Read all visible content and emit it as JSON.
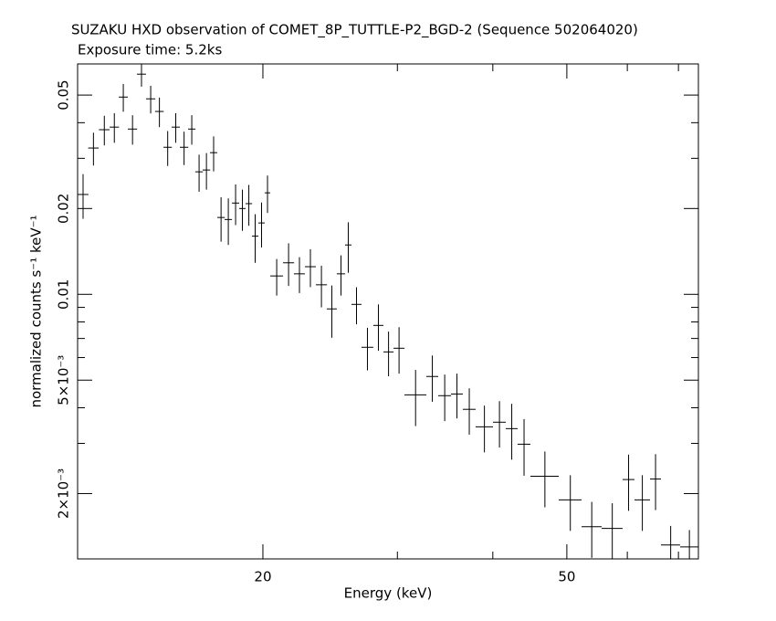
{
  "chart_data": {
    "type": "errorbar",
    "title": "SUZAKU HXD observation of COMET_8P_TUTTLE-P2_BGD-2 (Sequence 502064020)",
    "subtitle": "Exposure time: 5.2ks",
    "xlabel": "Energy (keV)",
    "ylabel": "normalized counts s⁻¹ keV⁻¹",
    "xlog": true,
    "ylog": true,
    "xlim": [
      11.44,
      74.34
    ],
    "ylim": [
      0.00118,
      0.0643
    ],
    "xticks": [
      20,
      50
    ],
    "xminorticks": [
      30,
      40,
      60,
      70
    ],
    "yticks": [
      0.05,
      0.02,
      0.01,
      {
        "value": 0.005,
        "label": "5×10⁻³"
      },
      {
        "value": 0.002,
        "label": "2×10⁻³"
      }
    ],
    "yminorticks": [
      0.04,
      0.03,
      0.009,
      0.008,
      0.007,
      0.006,
      0.004,
      0.003
    ],
    "x": [
      11.63,
      12.0,
      12.4,
      12.78,
      13.13,
      13.5,
      13.87,
      14.26,
      14.64,
      15.01,
      15.38,
      15.77,
      16.14,
      16.5,
      16.87,
      17.24,
      17.63,
      18.02,
      18.42,
      18.8,
      19.17,
      19.54,
      19.92,
      20.28,
      20.85,
      21.61,
      22.33,
      23.08,
      23.86,
      24.62,
      25.31,
      25.87,
      26.52,
      27.41,
      28.33,
      29.21,
      30.15,
      31.69,
      33.33,
      34.6,
      35.9,
      37.26,
      39.0,
      40.81,
      42.35,
      43.95,
      46.8,
      50.53,
      53.9,
      57.34,
      60.23,
      62.78,
      65.33,
      68.38,
      72.35
    ],
    "xerr": [
      0.19,
      0.19,
      0.2,
      0.18,
      0.18,
      0.19,
      0.19,
      0.2,
      0.19,
      0.19,
      0.19,
      0.2,
      0.18,
      0.19,
      0.19,
      0.19,
      0.2,
      0.2,
      0.2,
      0.18,
      0.19,
      0.19,
      0.19,
      0.17,
      0.4,
      0.36,
      0.37,
      0.38,
      0.4,
      0.37,
      0.32,
      0.25,
      0.4,
      0.49,
      0.43,
      0.45,
      0.5,
      1.05,
      0.6,
      0.67,
      0.64,
      0.72,
      1.02,
      0.79,
      0.76,
      0.85,
      2.0,
      1.74,
      1.63,
      1.81,
      1.08,
      1.47,
      1.08,
      1.98,
      1.99
    ],
    "series": [
      {
        "color": "#000000",
        "values": [
          0.0224,
          0.0326,
          0.0378,
          0.0386,
          0.0492,
          0.038,
          0.0592,
          0.0485,
          0.0438,
          0.0328,
          0.0386,
          0.0328,
          0.038,
          0.0269,
          0.0273,
          0.0314,
          0.0186,
          0.0183,
          0.0209,
          0.02,
          0.0208,
          0.016,
          0.0178,
          0.0227,
          0.0116,
          0.0129,
          0.0118,
          0.0125,
          0.0108,
          0.00889,
          0.0118,
          0.0149,
          0.00922,
          0.00652,
          0.00778,
          0.00628,
          0.00647,
          0.00444,
          0.00515,
          0.00441,
          0.00447,
          0.00395,
          0.00343,
          0.00356,
          0.00338,
          0.00298,
          0.0023,
          0.0019,
          0.00153,
          0.00151,
          0.00224,
          0.0019,
          0.00225,
          0.00132,
          0.0013
        ],
        "errors": [
          0.004,
          0.0043,
          0.0045,
          0.0046,
          0.0055,
          0.0045,
          0.0057,
          0.0054,
          0.0052,
          0.0046,
          0.0046,
          0.0044,
          0.0045,
          0.004,
          0.004,
          0.0044,
          0.0033,
          0.0034,
          0.0034,
          0.0033,
          0.0034,
          0.0031,
          0.0032,
          0.0034,
          0.0017,
          0.0022,
          0.0017,
          0.0019,
          0.0018,
          0.00185,
          0.0019,
          0.003,
          0.00137,
          0.00111,
          0.00144,
          0.00112,
          0.0012,
          0.00099,
          0.00095,
          0.00082,
          0.0008,
          0.00073,
          0.00064,
          0.00066,
          0.00075,
          0.00067,
          0.00051,
          0.00042,
          0.00034,
          0.00034,
          0.0005,
          0.00042,
          0.0005,
          0.00022,
          0.00019
        ]
      }
    ]
  }
}
